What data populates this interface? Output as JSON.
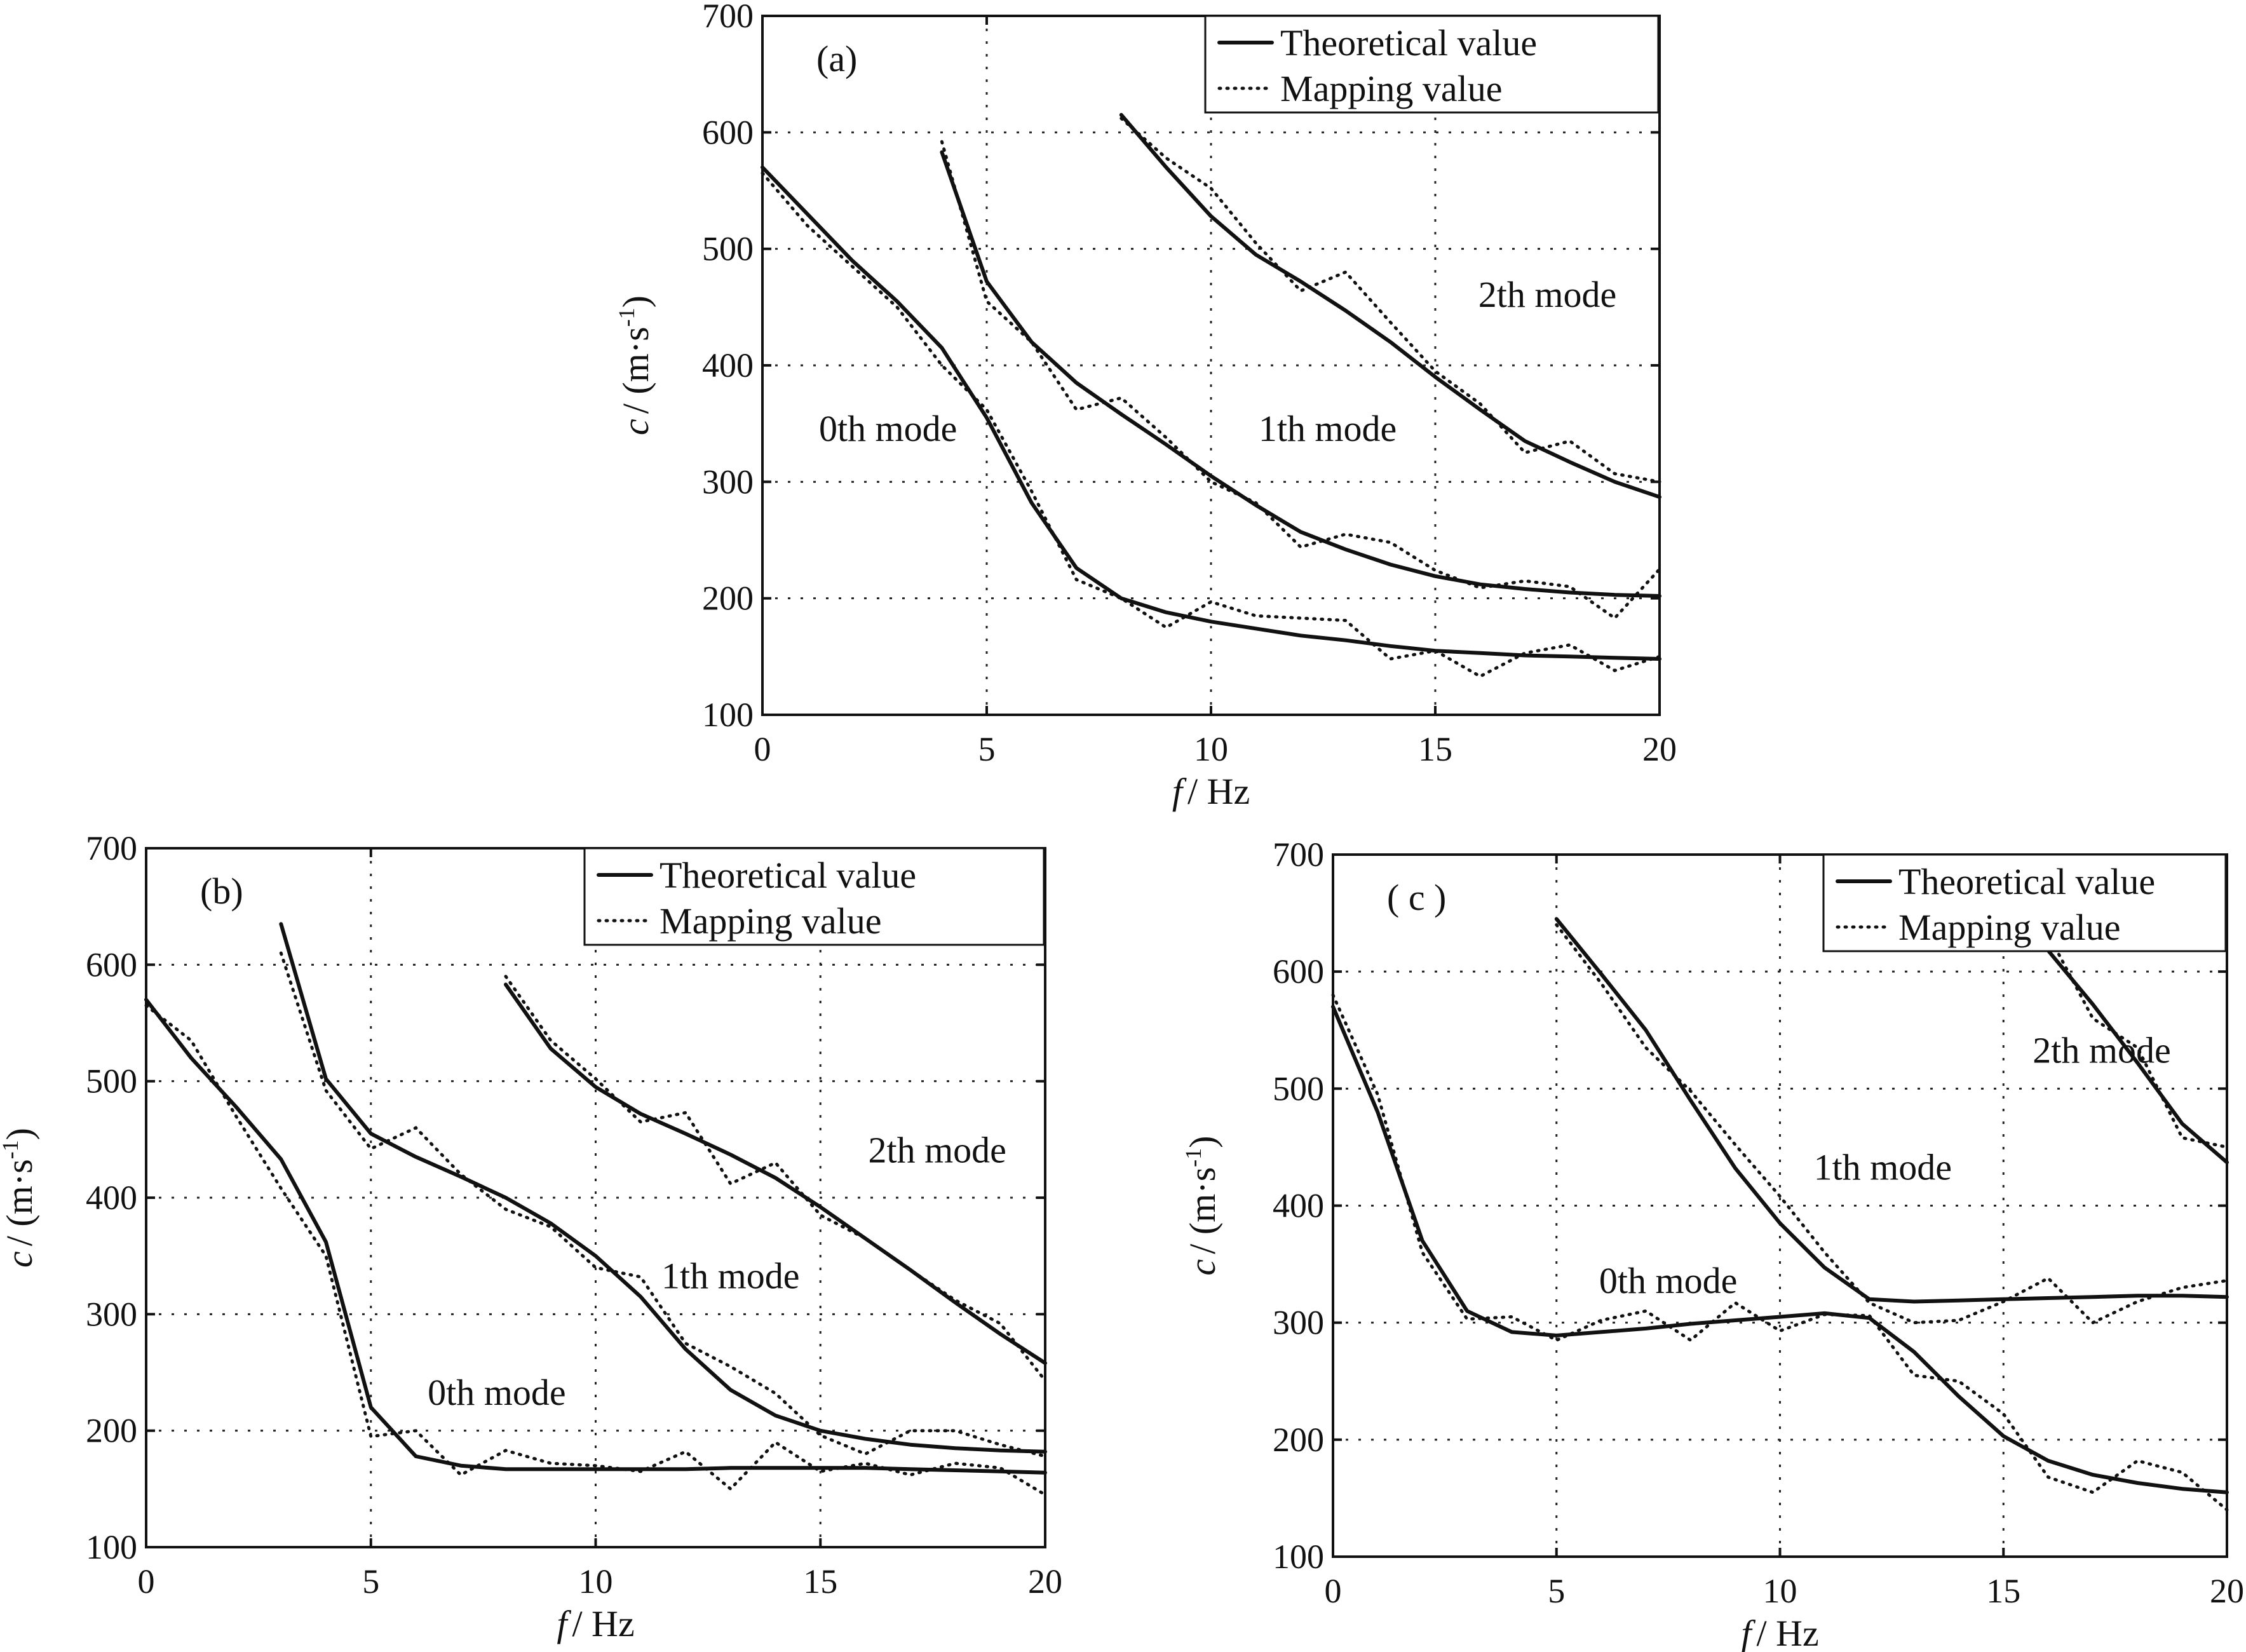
{
  "chart_data": [
    {
      "type": "line",
      "panel_label": "(a)",
      "xlabel_var": "f",
      "xlabel_unit": "/ Hz",
      "ylabel_var": "c",
      "ylabel_unit": "/ (m·s",
      "ylabel_sup": "-1",
      "ylabel_close": ")",
      "xlim": [
        0,
        20
      ],
      "ylim": [
        100,
        700
      ],
      "xticks": [
        0,
        5,
        10,
        15,
        20
      ],
      "yticks": [
        100,
        200,
        300,
        400,
        500,
        600,
        700
      ],
      "grid": true,
      "legend": {
        "placement": "top-right",
        "entries": [
          "Theoretical value",
          "Mapping value"
        ]
      },
      "annotations": [
        {
          "text": "0th mode",
          "x": 2.8,
          "y": 345
        },
        {
          "text": "1th mode",
          "x": 12.6,
          "y": 345
        },
        {
          "text": "2th mode",
          "x": 17.5,
          "y": 460
        }
      ],
      "series": [
        {
          "name": "Theoretical 0th mode",
          "style": "solid",
          "x": [
            0,
            1,
            2,
            3,
            4,
            5,
            6,
            7,
            8,
            9,
            10,
            11,
            12,
            13,
            14,
            15,
            16,
            17,
            18,
            19,
            20
          ],
          "y": [
            570,
            530,
            490,
            455,
            415,
            355,
            282,
            226,
            200,
            188,
            180,
            174,
            168,
            164,
            159,
            155,
            153,
            151,
            150,
            149,
            148
          ]
        },
        {
          "name": "Mapping 0th mode",
          "style": "dotted",
          "x": [
            0,
            1,
            2,
            3,
            4,
            5,
            6,
            7,
            8,
            9,
            10,
            11,
            12,
            13,
            14,
            15,
            16,
            17,
            18,
            19,
            20
          ],
          "y": [
            565,
            520,
            485,
            450,
            400,
            362,
            292,
            216,
            200,
            175,
            197,
            185,
            183,
            181,
            148,
            155,
            133,
            153,
            160,
            138,
            150
          ]
        },
        {
          "name": "Theoretical 1th mode",
          "style": "solid",
          "x": [
            4,
            5,
            6,
            7,
            8,
            9,
            10,
            11,
            12,
            13,
            14,
            15,
            16,
            17,
            18,
            19,
            20
          ],
          "y": [
            583,
            472,
            420,
            385,
            358,
            332,
            305,
            280,
            257,
            242,
            229,
            219,
            212,
            208,
            205,
            203,
            202
          ]
        },
        {
          "name": "Mapping 1th mode",
          "style": "dotted",
          "x": [
            4,
            5,
            6,
            7,
            8,
            9,
            10,
            11,
            12,
            13,
            14,
            15,
            16,
            17,
            18,
            19,
            20
          ],
          "y": [
            592,
            455,
            420,
            362,
            372,
            338,
            300,
            282,
            244,
            255,
            248,
            224,
            209,
            215,
            210,
            183,
            225
          ]
        },
        {
          "name": "Theoretical 2th mode",
          "style": "solid",
          "x": [
            8,
            9,
            10,
            11,
            12,
            13,
            14,
            15,
            16,
            17,
            18,
            19,
            20
          ],
          "y": [
            615,
            570,
            528,
            495,
            472,
            447,
            420,
            390,
            362,
            335,
            317,
            300,
            287
          ]
        },
        {
          "name": "Mapping 2th mode",
          "style": "dotted",
          "x": [
            8,
            9,
            10,
            11,
            12,
            13,
            14,
            15,
            16,
            17,
            18,
            19,
            20
          ],
          "y": [
            612,
            578,
            552,
            505,
            464,
            480,
            437,
            395,
            367,
            325,
            335,
            307,
            300
          ]
        }
      ]
    },
    {
      "type": "line",
      "panel_label": "(b)",
      "xlabel_var": "f",
      "xlabel_unit": "/ Hz",
      "ylabel_var": "c",
      "ylabel_unit": "/ (m·s",
      "ylabel_sup": "-1",
      "ylabel_close": ")",
      "xlim": [
        0,
        20
      ],
      "ylim": [
        100,
        700
      ],
      "xticks": [
        0,
        5,
        10,
        15,
        20
      ],
      "yticks": [
        100,
        200,
        300,
        400,
        500,
        600,
        700
      ],
      "grid": true,
      "legend": {
        "placement": "top-right",
        "entries": [
          "Theoretical value",
          "Mapping value"
        ]
      },
      "annotations": [
        {
          "text": "0th mode",
          "x": 7.8,
          "y": 232
        },
        {
          "text": "1th mode",
          "x": 13.0,
          "y": 332
        },
        {
          "text": "2th mode",
          "x": 17.6,
          "y": 440
        }
      ],
      "series": [
        {
          "name": "Theoretical 0th mode",
          "style": "solid",
          "x": [
            0,
            1,
            2,
            3,
            4,
            5,
            6,
            7,
            8,
            9,
            10,
            11,
            12,
            13,
            14,
            15,
            16,
            17,
            18,
            19,
            20
          ],
          "y": [
            570,
            520,
            478,
            433,
            362,
            220,
            178,
            170,
            167,
            167,
            167,
            167,
            167,
            168,
            168,
            168,
            168,
            167,
            166,
            165,
            164
          ]
        },
        {
          "name": "Mapping 0th mode",
          "style": "dotted",
          "x": [
            0,
            1,
            2,
            3,
            4,
            5,
            6,
            7,
            8,
            9,
            10,
            11,
            12,
            13,
            14,
            15,
            16,
            17,
            18,
            19,
            20
          ],
          "y": [
            565,
            535,
            470,
            408,
            350,
            195,
            200,
            162,
            183,
            172,
            170,
            165,
            182,
            150,
            190,
            165,
            172,
            162,
            172,
            168,
            145
          ]
        },
        {
          "name": "Theoretical 1th mode",
          "style": "solid",
          "x": [
            3,
            4,
            5,
            6,
            7,
            8,
            9,
            10,
            11,
            12,
            13,
            14,
            15,
            16,
            17,
            18,
            19,
            20
          ],
          "y": [
            635,
            502,
            455,
            435,
            418,
            400,
            378,
            350,
            315,
            270,
            235,
            213,
            200,
            193,
            188,
            185,
            183,
            182
          ]
        },
        {
          "name": "Mapping 1th mode",
          "style": "dotted",
          "x": [
            3,
            4,
            5,
            6,
            7,
            8,
            9,
            10,
            11,
            12,
            13,
            14,
            15,
            16,
            17,
            18,
            19,
            20
          ],
          "y": [
            610,
            492,
            442,
            460,
            420,
            390,
            375,
            340,
            332,
            275,
            255,
            232,
            196,
            180,
            200,
            200,
            188,
            178
          ]
        },
        {
          "name": "Theoretical 2th mode",
          "style": "solid",
          "x": [
            8,
            9,
            10,
            11,
            12,
            13,
            14,
            15,
            16,
            17,
            18,
            19,
            20
          ],
          "y": [
            583,
            528,
            495,
            472,
            455,
            437,
            417,
            392,
            365,
            338,
            310,
            283,
            258
          ]
        },
        {
          "name": "Mapping 2th mode",
          "style": "dotted",
          "x": [
            8,
            9,
            10,
            11,
            12,
            13,
            14,
            15,
            16,
            17,
            18,
            19,
            20
          ],
          "y": [
            590,
            535,
            502,
            465,
            473,
            412,
            430,
            385,
            365,
            338,
            312,
            292,
            243
          ]
        }
      ]
    },
    {
      "type": "line",
      "panel_label": "( c )",
      "xlabel_var": "f",
      "xlabel_unit": "/ Hz",
      "ylabel_var": "c",
      "ylabel_unit": "/ (m·s",
      "ylabel_sup": "-1",
      "ylabel_close": ")",
      "xlim": [
        0,
        20
      ],
      "ylim": [
        100,
        700
      ],
      "xticks": [
        0,
        5,
        10,
        15,
        20
      ],
      "yticks": [
        100,
        200,
        300,
        400,
        500,
        600,
        700
      ],
      "grid": true,
      "legend": {
        "placement": "top-right",
        "entries": [
          "Theoretical value",
          "Mapping value"
        ]
      },
      "annotations": [
        {
          "text": "0th mode",
          "x": 7.5,
          "y": 335
        },
        {
          "text": "1th mode",
          "x": 12.3,
          "y": 432
        },
        {
          "text": "2th mode",
          "x": 17.2,
          "y": 532
        }
      ],
      "series": [
        {
          "name": "Theoretical 0th mode",
          "style": "solid",
          "x": [
            0,
            1,
            2,
            3,
            4,
            5,
            6,
            7,
            8,
            9,
            10,
            11,
            12,
            13,
            14,
            15,
            16,
            17,
            18,
            19,
            20
          ],
          "y": [
            570,
            480,
            370,
            310,
            292,
            289,
            292,
            295,
            299,
            302,
            305,
            308,
            304,
            275,
            237,
            203,
            182,
            170,
            163,
            158,
            155
          ]
        },
        {
          "name": "Mapping 0th mode",
          "style": "dotted",
          "x": [
            0,
            1,
            2,
            3,
            4,
            5,
            6,
            7,
            8,
            9,
            10,
            11,
            12,
            13,
            14,
            15,
            16,
            17,
            18,
            19,
            20
          ],
          "y": [
            580,
            495,
            360,
            303,
            305,
            285,
            302,
            310,
            285,
            317,
            293,
            307,
            306,
            255,
            250,
            222,
            168,
            155,
            182,
            172,
            140
          ]
        },
        {
          "name": "Theoretical 1th mode",
          "style": "solid",
          "x": [
            5,
            6,
            7,
            8,
            9,
            10,
            11,
            12,
            13,
            14,
            15,
            16,
            17,
            18,
            19,
            20
          ],
          "y": [
            645,
            598,
            550,
            490,
            432,
            385,
            347,
            320,
            318,
            319,
            320,
            321,
            322,
            323,
            323,
            322
          ]
        },
        {
          "name": "Mapping 1th mode",
          "style": "dotted",
          "x": [
            5,
            6,
            7,
            8,
            9,
            10,
            11,
            12,
            13,
            14,
            15,
            16,
            17,
            18,
            19,
            20
          ],
          "y": [
            640,
            590,
            535,
            498,
            452,
            408,
            360,
            317,
            300,
            302,
            318,
            338,
            300,
            318,
            330,
            336
          ]
        },
        {
          "name": "Theoretical 2th mode",
          "style": "solid",
          "x": [
            16,
            17,
            18,
            19,
            20
          ],
          "y": [
            618,
            572,
            522,
            470,
            437
          ]
        },
        {
          "name": "Mapping 2th mode",
          "style": "dotted",
          "x": [
            16,
            17,
            18,
            19,
            20
          ],
          "y": [
            632,
            560,
            535,
            458,
            450
          ]
        }
      ]
    }
  ]
}
